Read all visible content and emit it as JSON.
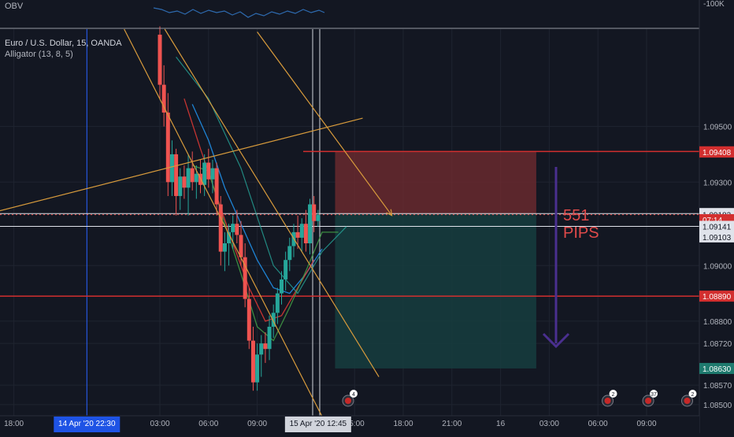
{
  "obv": {
    "label": "OBV",
    "axis_label": "-100K"
  },
  "legend": {
    "symbol": "Euro / U.S. Dollar, 15, OANDA",
    "indicator": "Alligator (13, 8, 5)"
  },
  "annotation": {
    "line1": "551",
    "line2": "PIPS"
  },
  "colors": {
    "background": "#131722",
    "up": "#26a69a",
    "down": "#ef5350",
    "sl_zone": "#6e2b30",
    "tp_zone": "#163d3e",
    "trend": "#d89b3c",
    "arrow": "#4a2f8f",
    "level_red": "#d32f2f"
  },
  "chart_data": {
    "type": "candlestick",
    "instrument": "Euro / U.S. Dollar",
    "timeframe": "15",
    "source": "OANDA",
    "ylim": [
      1.0846,
      1.0985
    ],
    "y_ticks": [
      "1.08500",
      "1.08570",
      "1.08720",
      "1.08800",
      "1.09000",
      "1.09300",
      "1.09500"
    ],
    "x_ticks": [
      {
        "label": "18:00",
        "h": -6
      },
      {
        "label": "03:00",
        "h": 3
      },
      {
        "label": "06:00",
        "h": 6
      },
      {
        "label": "09:00",
        "h": 9
      },
      {
        "label": "15:00",
        "h": 15
      },
      {
        "label": "18:00",
        "h": 18
      },
      {
        "label": "21:00",
        "h": 21
      },
      {
        "label": "16",
        "h": 24
      },
      {
        "label": "03:00",
        "h": 27
      },
      {
        "label": "06:00",
        "h": 30
      },
      {
        "label": "09:00",
        "h": 33
      }
    ],
    "x_highlight": [
      {
        "label": "14 Apr '20   22:30",
        "h": -1.5
      },
      {
        "label": "15 Apr '20   12:45",
        "h": 12.75
      }
    ],
    "price_labels": [
      {
        "value": "1.09409",
        "y": 1.09409,
        "kind": "red"
      },
      {
        "value": "1.09408",
        "y": 1.09408,
        "kind": "red"
      },
      {
        "value": "1.09187",
        "y": 1.09187,
        "kind": "white"
      },
      {
        "value": "1.09183",
        "y": 1.09183,
        "kind": "white"
      },
      {
        "value": "07:14",
        "y": 1.09165,
        "kind": "red"
      },
      {
        "value": "1.09141",
        "y": 1.09141,
        "kind": "white"
      },
      {
        "value": "1.09103",
        "y": 1.09103,
        "kind": "white"
      },
      {
        "value": "1.08890",
        "y": 1.0889,
        "kind": "red"
      },
      {
        "value": "1.08630",
        "y": 1.0863,
        "kind": "teal"
      }
    ],
    "horizontal_levels": [
      {
        "y": 1.09187,
        "color": "white"
      },
      {
        "y": 1.09141,
        "color": "white"
      },
      {
        "y": 1.0889,
        "color": "red"
      },
      {
        "y": 1.0941,
        "color": "red-short"
      }
    ],
    "position": {
      "entry": 1.09185,
      "stop": 1.0941,
      "target": 1.0863,
      "start_h": 13.8,
      "end_h": 26.2
    },
    "candles": [
      {
        "t": 3.0,
        "o": 1.0983,
        "h": 1.0986,
        "l": 1.096,
        "c": 1.0965
      },
      {
        "t": 3.25,
        "o": 1.0965,
        "h": 1.0972,
        "l": 1.095,
        "c": 1.0955
      },
      {
        "t": 3.5,
        "o": 1.0955,
        "h": 1.0962,
        "l": 1.0925,
        "c": 1.093
      },
      {
        "t": 3.75,
        "o": 1.093,
        "h": 1.0945,
        "l": 1.0925,
        "c": 1.094
      },
      {
        "t": 4.0,
        "o": 1.094,
        "h": 1.0942,
        "l": 1.0918,
        "c": 1.0925
      },
      {
        "t": 4.25,
        "o": 1.0925,
        "h": 1.0935,
        "l": 1.092,
        "c": 1.0932
      },
      {
        "t": 4.5,
        "o": 1.0932,
        "h": 1.0936,
        "l": 1.0924,
        "c": 1.0928
      },
      {
        "t": 4.75,
        "o": 1.0928,
        "h": 1.094,
        "l": 1.0918,
        "c": 1.0935
      },
      {
        "t": 5.0,
        "o": 1.0935,
        "h": 1.0941,
        "l": 1.0927,
        "c": 1.093
      },
      {
        "t": 5.25,
        "o": 1.093,
        "h": 1.0936,
        "l": 1.0924,
        "c": 1.0933
      },
      {
        "t": 5.5,
        "o": 1.0933,
        "h": 1.0938,
        "l": 1.0926,
        "c": 1.0929
      },
      {
        "t": 5.75,
        "o": 1.0929,
        "h": 1.094,
        "l": 1.0925,
        "c": 1.0937
      },
      {
        "t": 6.0,
        "o": 1.0937,
        "h": 1.0942,
        "l": 1.0928,
        "c": 1.0931
      },
      {
        "t": 6.25,
        "o": 1.0931,
        "h": 1.0938,
        "l": 1.0926,
        "c": 1.0935
      },
      {
        "t": 6.5,
        "o": 1.0935,
        "h": 1.0937,
        "l": 1.0918,
        "c": 1.0922
      },
      {
        "t": 6.75,
        "o": 1.0922,
        "h": 1.0925,
        "l": 1.09,
        "c": 1.0905
      },
      {
        "t": 7.0,
        "o": 1.0905,
        "h": 1.0912,
        "l": 1.0898,
        "c": 1.0908
      },
      {
        "t": 7.25,
        "o": 1.0908,
        "h": 1.0915,
        "l": 1.09,
        "c": 1.0912
      },
      {
        "t": 7.5,
        "o": 1.0912,
        "h": 1.0918,
        "l": 1.0906,
        "c": 1.0915
      },
      {
        "t": 7.75,
        "o": 1.0915,
        "h": 1.092,
        "l": 1.0908,
        "c": 1.0911
      },
      {
        "t": 8.0,
        "o": 1.0911,
        "h": 1.0916,
        "l": 1.09,
        "c": 1.0903
      },
      {
        "t": 8.25,
        "o": 1.0903,
        "h": 1.0908,
        "l": 1.0885,
        "c": 1.0888
      },
      {
        "t": 8.5,
        "o": 1.0888,
        "h": 1.0892,
        "l": 1.087,
        "c": 1.0873
      },
      {
        "t": 8.75,
        "o": 1.0873,
        "h": 1.0878,
        "l": 1.0855,
        "c": 1.0858
      },
      {
        "t": 9.0,
        "o": 1.0858,
        "h": 1.0872,
        "l": 1.0855,
        "c": 1.0868
      },
      {
        "t": 9.25,
        "o": 1.0868,
        "h": 1.0875,
        "l": 1.086,
        "c": 1.0872
      },
      {
        "t": 9.5,
        "o": 1.0872,
        "h": 1.0876,
        "l": 1.0865,
        "c": 1.087
      },
      {
        "t": 9.75,
        "o": 1.087,
        "h": 1.0882,
        "l": 1.0866,
        "c": 1.0878
      },
      {
        "t": 10.0,
        "o": 1.0878,
        "h": 1.0886,
        "l": 1.0874,
        "c": 1.0883
      },
      {
        "t": 10.25,
        "o": 1.0883,
        "h": 1.0892,
        "l": 1.0879,
        "c": 1.089
      },
      {
        "t": 10.5,
        "o": 1.089,
        "h": 1.0898,
        "l": 1.0886,
        "c": 1.0895
      },
      {
        "t": 10.75,
        "o": 1.0895,
        "h": 1.0905,
        "l": 1.0891,
        "c": 1.0902
      },
      {
        "t": 11.0,
        "o": 1.0902,
        "h": 1.091,
        "l": 1.0898,
        "c": 1.0907
      },
      {
        "t": 11.25,
        "o": 1.0907,
        "h": 1.0915,
        "l": 1.0903,
        "c": 1.0912
      },
      {
        "t": 11.5,
        "o": 1.0912,
        "h": 1.0918,
        "l": 1.0906,
        "c": 1.091
      },
      {
        "t": 11.75,
        "o": 1.091,
        "h": 1.0917,
        "l": 1.0905,
        "c": 1.0915
      },
      {
        "t": 12.0,
        "o": 1.0915,
        "h": 1.092,
        "l": 1.0905,
        "c": 1.0908
      },
      {
        "t": 12.25,
        "o": 1.0908,
        "h": 1.0924,
        "l": 1.0904,
        "c": 1.0922
      },
      {
        "t": 12.5,
        "o": 1.0922,
        "h": 1.0925,
        "l": 1.0912,
        "c": 1.0916
      },
      {
        "t": 12.75,
        "o": 1.0916,
        "h": 1.092,
        "l": 1.0914,
        "c": 1.09183
      }
    ],
    "alligator": [
      {
        "name": "jaw",
        "color": "#2196f3",
        "points": [
          [
            5,
            1.0958
          ],
          [
            6,
            1.0945
          ],
          [
            7,
            1.0928
          ],
          [
            8,
            1.0915
          ],
          [
            9,
            1.0902
          ],
          [
            10,
            1.0892
          ],
          [
            11,
            1.089
          ],
          [
            12,
            1.0897
          ],
          [
            13,
            1.0906
          ]
        ]
      },
      {
        "name": "teeth",
        "color": "#e53935",
        "points": [
          [
            4.5,
            1.096
          ],
          [
            5.5,
            1.0942
          ],
          [
            6.5,
            1.0925
          ],
          [
            7.5,
            1.0908
          ],
          [
            8.5,
            1.0892
          ],
          [
            9.5,
            1.088
          ],
          [
            10.5,
            1.0882
          ],
          [
            11.5,
            1.0892
          ],
          [
            12.5,
            1.0902
          ]
        ]
      },
      {
        "name": "lips",
        "color": "#43a047",
        "points": [
          [
            5,
            1.0936
          ],
          [
            6,
            1.0934
          ],
          [
            7,
            1.0915
          ],
          [
            8,
            1.0897
          ],
          [
            9,
            1.0878
          ],
          [
            10,
            1.0873
          ],
          [
            11,
            1.0885
          ],
          [
            12,
            1.0898
          ],
          [
            13,
            1.0912
          ],
          [
            14,
            1.0912
          ]
        ]
      }
    ],
    "trend_lines": [
      {
        "from": [
          -8,
          1.0918
        ],
        "to": [
          15.5,
          1.0953
        ]
      },
      {
        "from": [
          3.3,
          1.0985
        ],
        "to": [
          16.5,
          1.086
        ]
      },
      {
        "from": [
          0.8,
          1.0985
        ],
        "to": [
          13.5,
          1.084
        ]
      },
      {
        "from": [
          9,
          1.0984
        ],
        "to": [
          17.3,
          1.0918
        ],
        "arrow": true
      }
    ]
  },
  "events": [
    {
      "label": "4",
      "h": 14.6
    },
    {
      "label": "2",
      "h": 30.6
    },
    {
      "label": "37",
      "h": 33.1
    },
    {
      "label": "2",
      "h": 35.5
    }
  ]
}
